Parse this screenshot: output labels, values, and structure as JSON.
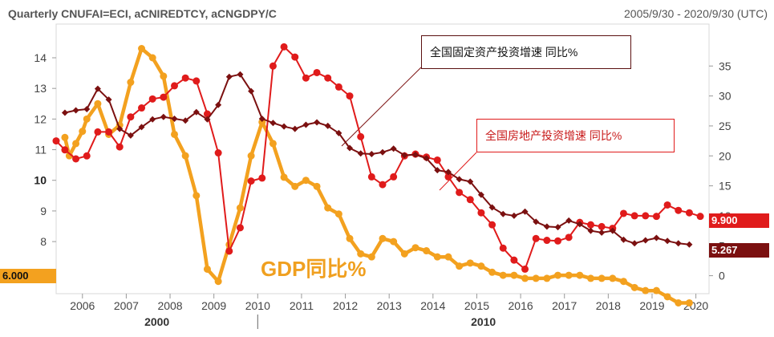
{
  "header": {
    "title": "Quarterly CNUFAI=ECI, aCNIREDTCY, aCNGDPY/C",
    "date_range": "2005/9/30 - 2020/9/30 (UTC)"
  },
  "annotations": {
    "fai": "全国固定资产投资增速 同比%",
    "real_estate": "全国房地产投资增速 同比%",
    "gdp": "GDP同比%"
  },
  "value_tags": {
    "left": "6.000",
    "right_top": "9.900",
    "right_bottom": "5.267"
  },
  "colors": {
    "fai": "#7b1010",
    "real_estate": "#e01b1b",
    "gdp": "#f3a11f",
    "plot_border": "#d8d8d8"
  },
  "chart_data": {
    "type": "line",
    "title": "Quarterly CNUFAI=ECI, aCNIREDTCY, aCNGDPY/C",
    "x_axis": {
      "range": [
        2005.4,
        2020.3
      ],
      "ticks": [
        2006,
        2007,
        2008,
        2009,
        2010,
        2011,
        2012,
        2013,
        2014,
        2015,
        2016,
        2017,
        2018,
        2019,
        2020
      ],
      "tick_labels": [
        "2006",
        "2007",
        "2008",
        "2009",
        "2010",
        "2011",
        "2012",
        "2013",
        "2014",
        "2015",
        "2016",
        "2017",
        "2018",
        "2019",
        "2020"
      ],
      "decade_labels": [
        "2000",
        "2010"
      ]
    },
    "y_left": {
      "range": [
        6.3,
        15.1
      ],
      "ticks": [
        7,
        8,
        9,
        10,
        11,
        12,
        13,
        14
      ],
      "tick_labels": [
        "7",
        "8",
        "9",
        "10",
        "11",
        "12",
        "13",
        "14"
      ],
      "applies_to": "gdp"
    },
    "y_right": {
      "range": [
        -3,
        42
      ],
      "ticks": [
        0,
        5,
        10,
        15,
        20,
        25,
        30,
        35
      ],
      "tick_labels": [
        "0",
        "5",
        "10",
        "15",
        "20",
        "25",
        "30",
        "35"
      ],
      "applies_to": [
        "fai",
        "real_estate"
      ]
    },
    "series": [
      {
        "name": "全国固定资产投资增速 同比%",
        "key": "fai",
        "axis": "right",
        "marker": "diamond",
        "points": [
          [
            2005.6,
            27.2
          ],
          [
            2005.85,
            27.6
          ],
          [
            2006.1,
            27.8
          ],
          [
            2006.35,
            31.2
          ],
          [
            2006.6,
            29.4
          ],
          [
            2006.85,
            24.5
          ],
          [
            2007.1,
            23.4
          ],
          [
            2007.35,
            24.8
          ],
          [
            2007.6,
            26.1
          ],
          [
            2007.85,
            26.5
          ],
          [
            2008.1,
            26.2
          ],
          [
            2008.35,
            25.9
          ],
          [
            2008.6,
            27.3
          ],
          [
            2008.85,
            26.1
          ],
          [
            2009.1,
            28.5
          ],
          [
            2009.35,
            33.2
          ],
          [
            2009.6,
            33.6
          ],
          [
            2009.85,
            30.8
          ],
          [
            2010.1,
            26.2
          ],
          [
            2010.35,
            25.5
          ],
          [
            2010.6,
            24.9
          ],
          [
            2010.85,
            24.5
          ],
          [
            2011.1,
            25.2
          ],
          [
            2011.35,
            25.6
          ],
          [
            2011.6,
            25.0
          ],
          [
            2011.85,
            23.8
          ],
          [
            2012.1,
            21.3
          ],
          [
            2012.35,
            20.4
          ],
          [
            2012.6,
            20.3
          ],
          [
            2012.85,
            20.6
          ],
          [
            2013.1,
            21.2
          ],
          [
            2013.35,
            20.1
          ],
          [
            2013.6,
            20.2
          ],
          [
            2013.85,
            19.6
          ],
          [
            2014.1,
            17.6
          ],
          [
            2014.35,
            17.3
          ],
          [
            2014.6,
            16.1
          ],
          [
            2014.85,
            15.7
          ],
          [
            2015.1,
            13.5
          ],
          [
            2015.35,
            11.4
          ],
          [
            2015.6,
            10.3
          ],
          [
            2015.85,
            10.0
          ],
          [
            2016.1,
            10.7
          ],
          [
            2016.35,
            9.0
          ],
          [
            2016.6,
            8.2
          ],
          [
            2016.85,
            8.1
          ],
          [
            2017.1,
            9.2
          ],
          [
            2017.35,
            8.6
          ],
          [
            2017.6,
            7.5
          ],
          [
            2017.85,
            7.2
          ],
          [
            2018.1,
            7.5
          ],
          [
            2018.35,
            6.0
          ],
          [
            2018.6,
            5.4
          ],
          [
            2018.85,
            5.9
          ],
          [
            2019.1,
            6.3
          ],
          [
            2019.35,
            5.8
          ],
          [
            2019.6,
            5.4
          ],
          [
            2019.85,
            5.2
          ]
        ]
      },
      {
        "name": "全国房地产投资增速 同比%",
        "key": "real_estate",
        "axis": "right",
        "marker": "circle",
        "points": [
          [
            2005.4,
            22.5
          ],
          [
            2005.6,
            21.0
          ],
          [
            2005.85,
            19.5
          ],
          [
            2006.1,
            20.0
          ],
          [
            2006.35,
            24.0
          ],
          [
            2006.6,
            24.0
          ],
          [
            2006.85,
            21.5
          ],
          [
            2007.1,
            26.5
          ],
          [
            2007.35,
            28.0
          ],
          [
            2007.6,
            29.5
          ],
          [
            2007.85,
            29.8
          ],
          [
            2008.1,
            31.7
          ],
          [
            2008.35,
            33.0
          ],
          [
            2008.6,
            32.5
          ],
          [
            2008.85,
            27.0
          ],
          [
            2009.1,
            20.5
          ],
          [
            2009.35,
            4.1
          ],
          [
            2009.6,
            8.0
          ],
          [
            2009.85,
            15.8
          ],
          [
            2010.1,
            16.3
          ],
          [
            2010.35,
            35.0
          ],
          [
            2010.6,
            38.2
          ],
          [
            2010.85,
            36.5
          ],
          [
            2011.1,
            33.0
          ],
          [
            2011.35,
            33.9
          ],
          [
            2011.6,
            33.0
          ],
          [
            2011.85,
            31.5
          ],
          [
            2012.1,
            30.0
          ],
          [
            2012.35,
            23.2
          ],
          [
            2012.6,
            16.5
          ],
          [
            2012.85,
            15.2
          ],
          [
            2013.1,
            16.5
          ],
          [
            2013.35,
            20.0
          ],
          [
            2013.6,
            20.3
          ],
          [
            2013.85,
            19.8
          ],
          [
            2014.1,
            19.3
          ],
          [
            2014.35,
            16.5
          ],
          [
            2014.6,
            13.9
          ],
          [
            2014.85,
            12.7
          ],
          [
            2015.1,
            10.5
          ],
          [
            2015.35,
            8.5
          ],
          [
            2015.6,
            4.6
          ],
          [
            2015.85,
            2.6
          ],
          [
            2016.1,
            1.1
          ],
          [
            2016.35,
            6.2
          ],
          [
            2016.6,
            5.9
          ],
          [
            2016.85,
            5.8
          ],
          [
            2017.1,
            6.4
          ],
          [
            2017.35,
            8.9
          ],
          [
            2017.6,
            8.5
          ],
          [
            2017.85,
            8.2
          ],
          [
            2018.1,
            7.9
          ],
          [
            2018.35,
            10.4
          ],
          [
            2018.6,
            10.0
          ],
          [
            2018.85,
            10.0
          ],
          [
            2019.1,
            9.9
          ],
          [
            2019.35,
            11.8
          ],
          [
            2019.6,
            10.9
          ],
          [
            2019.85,
            10.5
          ],
          [
            2020.1,
            9.9
          ]
        ]
      },
      {
        "name": "GDP同比%",
        "key": "gdp",
        "axis": "left",
        "marker": "circle",
        "points": [
          [
            2005.6,
            11.4
          ],
          [
            2005.7,
            10.8
          ],
          [
            2005.85,
            11.2
          ],
          [
            2006.0,
            11.6
          ],
          [
            2006.1,
            12.0
          ],
          [
            2006.35,
            12.5
          ],
          [
            2006.6,
            11.5
          ],
          [
            2006.85,
            11.8
          ],
          [
            2007.1,
            13.2
          ],
          [
            2007.35,
            14.3
          ],
          [
            2007.6,
            14.0
          ],
          [
            2007.85,
            13.4
          ],
          [
            2008.1,
            11.5
          ],
          [
            2008.35,
            10.8
          ],
          [
            2008.6,
            9.5
          ],
          [
            2008.85,
            7.1
          ],
          [
            2009.1,
            6.7
          ],
          [
            2009.35,
            7.9
          ],
          [
            2009.6,
            9.1
          ],
          [
            2009.85,
            10.8
          ],
          [
            2010.1,
            11.9
          ],
          [
            2010.35,
            11.2
          ],
          [
            2010.6,
            10.1
          ],
          [
            2010.85,
            9.8
          ],
          [
            2011.1,
            10.0
          ],
          [
            2011.35,
            9.8
          ],
          [
            2011.6,
            9.1
          ],
          [
            2011.85,
            8.9
          ],
          [
            2012.1,
            8.1
          ],
          [
            2012.35,
            7.6
          ],
          [
            2012.6,
            7.5
          ],
          [
            2012.85,
            8.1
          ],
          [
            2013.1,
            8.0
          ],
          [
            2013.35,
            7.6
          ],
          [
            2013.6,
            7.8
          ],
          [
            2013.85,
            7.7
          ],
          [
            2014.1,
            7.5
          ],
          [
            2014.35,
            7.5
          ],
          [
            2014.6,
            7.2
          ],
          [
            2014.85,
            7.3
          ],
          [
            2015.1,
            7.2
          ],
          [
            2015.35,
            7.0
          ],
          [
            2015.6,
            6.9
          ],
          [
            2015.85,
            6.9
          ],
          [
            2016.1,
            6.8
          ],
          [
            2016.35,
            6.8
          ],
          [
            2016.6,
            6.8
          ],
          [
            2016.85,
            6.9
          ],
          [
            2017.1,
            6.9
          ],
          [
            2017.35,
            6.9
          ],
          [
            2017.6,
            6.8
          ],
          [
            2017.85,
            6.8
          ],
          [
            2018.1,
            6.8
          ],
          [
            2018.35,
            6.7
          ],
          [
            2018.6,
            6.5
          ],
          [
            2018.85,
            6.4
          ],
          [
            2019.1,
            6.4
          ],
          [
            2019.35,
            6.2
          ],
          [
            2019.6,
            6.0
          ],
          [
            2019.85,
            6.0
          ]
        ]
      }
    ]
  }
}
